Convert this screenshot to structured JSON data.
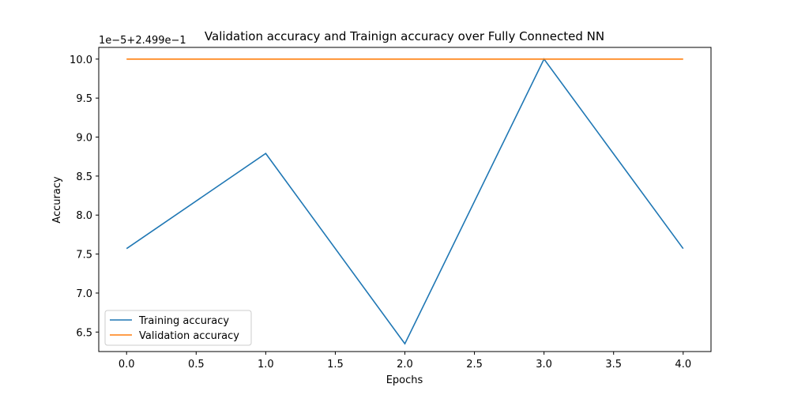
{
  "chart_data": {
    "type": "line",
    "title": "Validation accuracy and Trainign accuracy over Fully Connected NN",
    "xlabel": "Epochs",
    "ylabel": "Accuracy",
    "offset_label": "1e−5+2.499e−1",
    "x": [
      0,
      1,
      2,
      3,
      4
    ],
    "xlim": [
      -0.2,
      4.2
    ],
    "ylim": [
      6.25,
      10.15
    ],
    "xticks": [
      0.0,
      0.5,
      1.0,
      1.5,
      2.0,
      2.5,
      3.0,
      3.5,
      4.0
    ],
    "xtick_labels": [
      "0.0",
      "0.5",
      "1.0",
      "1.5",
      "2.0",
      "2.5",
      "3.0",
      "3.5",
      "4.0"
    ],
    "yticks": [
      6.5,
      7.0,
      7.5,
      8.0,
      8.5,
      9.0,
      9.5,
      10.0
    ],
    "ytick_labels": [
      "6.5",
      "7.0",
      "7.5",
      "8.0",
      "8.5",
      "9.0",
      "9.5",
      "10.0"
    ],
    "grid": false,
    "legend_position": "lower-left",
    "series": [
      {
        "name": "Training accuracy",
        "color": "#1f77b4",
        "values": [
          7.57,
          8.79,
          6.35,
          10.0,
          7.57
        ]
      },
      {
        "name": "Validation accuracy",
        "color": "#ff7f0e",
        "values": [
          10.0,
          10.0,
          10.0,
          10.0,
          10.0
        ]
      }
    ]
  }
}
